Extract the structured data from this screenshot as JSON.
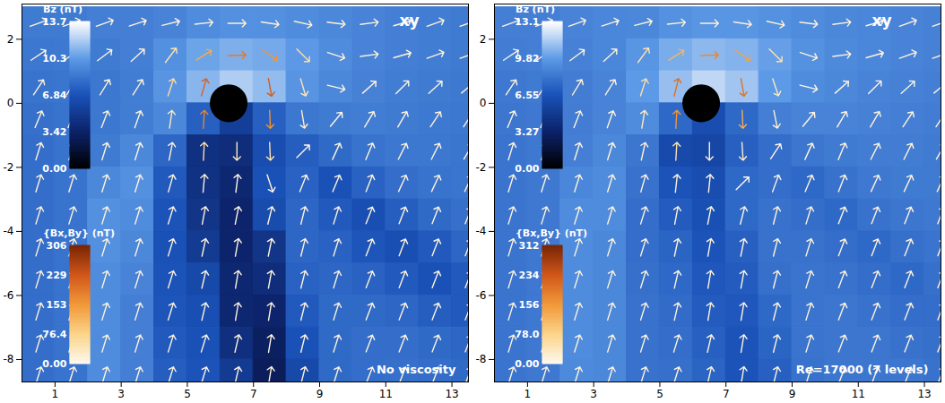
{
  "chart_data": [
    {
      "type": "vector_field",
      "title": "xy",
      "annotation": "No viscosity",
      "xlim": [
        0,
        13.5
      ],
      "ylim": [
        -8.7,
        3.1
      ],
      "xticks": [
        1,
        3,
        5,
        7,
        9,
        11,
        13
      ],
      "yticks": [
        -8,
        -6,
        -4,
        -2,
        0,
        2
      ],
      "body": {
        "x": 6.25,
        "y": 0,
        "r": 0.55
      },
      "grid_x": [
        0.5,
        1.5,
        2.5,
        3.5,
        4.5,
        5.5,
        6.5,
        7.5,
        8.5,
        9.5,
        10.5,
        11.5,
        12.5,
        13.5
      ],
      "grid_y": [
        2.5,
        1.5,
        0.5,
        -0.5,
        -1.5,
        -2.5,
        -3.5,
        -4.5,
        -5.5,
        -6.5,
        -7.5,
        -8.5
      ],
      "bz": [
        [
          8.8,
          8.8,
          9,
          9,
          9.2,
          9.6,
          9.8,
          9.8,
          9.6,
          9.4,
          9.2,
          9,
          8.9,
          8.8
        ],
        [
          8.6,
          8.7,
          8.8,
          9,
          9.8,
          10.6,
          11,
          10.8,
          10.2,
          9.6,
          9.2,
          9,
          8.9,
          8.8
        ],
        [
          8.4,
          8.5,
          8.6,
          8.9,
          10,
          11.2,
          12,
          11.4,
          10,
          9.4,
          9.1,
          8.9,
          8.8,
          8.7
        ],
        [
          8.3,
          8.4,
          8.6,
          8.9,
          9.4,
          7.5,
          5.5,
          7.5,
          8.6,
          8.8,
          8.9,
          8.8,
          8.7,
          8.6
        ],
        [
          8.2,
          8.4,
          8.8,
          9.4,
          7.8,
          4.5,
          4.2,
          6.5,
          7.4,
          8,
          8.4,
          8.6,
          8.6,
          8.5
        ],
        [
          8.2,
          8.4,
          9.4,
          9.8,
          7.2,
          4.6,
          3.8,
          6.8,
          7.6,
          6.8,
          7.6,
          8.2,
          8.4,
          8.5
        ],
        [
          8.2,
          8.4,
          9.8,
          9.6,
          6.9,
          4.8,
          3.6,
          6.4,
          7.8,
          7.2,
          6.6,
          7.4,
          8,
          8.3
        ],
        [
          8.2,
          8.4,
          9.8,
          9.4,
          6.8,
          5.2,
          3.6,
          4.8,
          7.8,
          7.6,
          7,
          6.6,
          7.2,
          7.8
        ],
        [
          8.2,
          8.4,
          9.6,
          9.2,
          6.9,
          6.2,
          3.8,
          4.2,
          7.6,
          7.8,
          7.6,
          7.2,
          6.8,
          7.2
        ],
        [
          8.2,
          8.4,
          9.6,
          9,
          7,
          6.6,
          3.8,
          3.6,
          7.2,
          8,
          8,
          7.8,
          7.4,
          7.2
        ],
        [
          8.2,
          8.4,
          9.6,
          9,
          7.2,
          6.8,
          4.4,
          3.2,
          6.8,
          8,
          8.2,
          8.2,
          8,
          7.8
        ],
        [
          8.2,
          8.4,
          9.6,
          9,
          7.4,
          6.9,
          5.2,
          3,
          6.2,
          8,
          8.2,
          8.3,
          8.2,
          8
        ]
      ],
      "bx": [
        [
          14,
          14,
          14,
          15,
          16,
          18,
          20,
          20,
          18,
          16,
          15,
          14,
          14,
          14
        ],
        [
          12,
          12,
          12,
          13,
          30,
          110,
          190,
          130,
          40,
          18,
          15,
          14,
          14,
          14
        ],
        [
          8,
          8,
          8,
          10,
          20,
          60,
          null,
          40,
          12,
          8,
          9,
          10,
          11,
          12
        ],
        [
          5,
          5,
          5,
          5,
          6,
          12,
          null,
          6,
          4,
          5,
          6,
          7,
          8,
          8
        ],
        [
          4,
          4,
          4,
          4,
          4,
          3,
          0,
          2,
          4,
          5,
          5,
          6,
          6,
          7
        ],
        [
          4,
          4,
          4,
          4,
          4,
          2,
          1,
          2,
          4,
          5,
          5,
          6,
          6,
          6
        ],
        [
          4,
          4,
          4,
          4,
          4,
          3,
          2,
          2,
          3,
          4,
          5,
          5,
          5,
          5
        ],
        [
          4,
          4,
          4,
          4,
          4,
          3,
          2,
          2,
          3,
          4,
          5,
          5,
          5,
          5
        ],
        [
          4,
          4,
          4,
          4,
          4,
          3,
          2,
          2,
          3,
          4,
          5,
          5,
          5,
          5
        ],
        [
          4,
          4,
          4,
          4,
          4,
          3,
          2,
          2,
          3,
          4,
          5,
          5,
          5,
          5
        ],
        [
          4,
          4,
          4,
          4,
          4,
          4,
          3,
          2,
          3,
          4,
          5,
          5,
          5,
          5
        ],
        [
          4,
          4,
          4,
          4,
          4,
          4,
          3,
          2,
          3,
          4,
          5,
          5,
          5,
          5
        ]
      ],
      "by": [
        [
          5,
          5,
          5,
          5,
          4,
          2,
          0,
          -3,
          -4,
          -2,
          2,
          4,
          5,
          5
        ],
        [
          8,
          8,
          9,
          12,
          40,
          70,
          10,
          -90,
          -40,
          -6,
          2,
          4,
          5,
          5
        ],
        [
          12,
          12,
          13,
          16,
          60,
          210,
          null,
          -220,
          -40,
          -2,
          8,
          10,
          10,
          10
        ],
        [
          12,
          12,
          13,
          14,
          40,
          180,
          null,
          -160,
          -24,
          6,
          10,
          12,
          12,
          12
        ],
        [
          13,
          13,
          13,
          13,
          20,
          60,
          -40,
          -45,
          4,
          11,
          12,
          12,
          12,
          12
        ],
        [
          13,
          13,
          13,
          13,
          14,
          22,
          8,
          -6,
          10,
          12,
          13,
          13,
          13,
          13
        ],
        [
          13,
          13,
          13,
          13,
          13,
          16,
          10,
          8,
          12,
          13,
          13,
          13,
          13,
          13
        ],
        [
          13,
          13,
          13,
          13,
          13,
          14,
          11,
          10,
          12,
          13,
          13,
          13,
          13,
          13
        ],
        [
          13,
          13,
          13,
          13,
          13,
          13,
          12,
          11,
          12,
          13,
          13,
          13,
          13,
          13
        ],
        [
          13,
          13,
          13,
          13,
          13,
          13,
          12,
          12,
          12,
          13,
          13,
          13,
          13,
          13
        ],
        [
          13,
          13,
          13,
          13,
          13,
          13,
          13,
          12,
          12,
          13,
          13,
          13,
          13,
          13
        ],
        [
          13,
          13,
          13,
          13,
          13,
          13,
          13,
          12,
          12,
          13,
          13,
          13,
          13,
          13
        ]
      ],
      "bz_colorbar": {
        "label": "Bz (nT)",
        "range": [
          0,
          13.7
        ],
        "ticks": [
          {
            "value": 0,
            "label": "0.00"
          },
          3.42,
          6.84,
          10.3,
          13.7
        ]
      },
      "bxby_colorbar": {
        "label": "{Bx,By} (nT)",
        "range": [
          0,
          306
        ],
        "ticks": [
          {
            "value": 0,
            "label": "0.00"
          },
          76.4,
          153,
          229,
          306
        ]
      }
    },
    {
      "type": "vector_field",
      "title": "xy",
      "annotation": "Re=17000 (7 levels)",
      "xlim": [
        0,
        13.5
      ],
      "ylim": [
        -8.7,
        3.1
      ],
      "xticks": [
        1,
        3,
        5,
        7,
        9,
        11,
        13
      ],
      "yticks": [
        -8,
        -6,
        -4,
        -2,
        0,
        2
      ],
      "body": {
        "x": 6.25,
        "y": 0,
        "r": 0.55
      },
      "grid_x": [
        0.5,
        1.5,
        2.5,
        3.5,
        4.5,
        5.5,
        6.5,
        7.5,
        8.5,
        9.5,
        10.5,
        11.5,
        12.5,
        13.5
      ],
      "grid_y": [
        2.5,
        1.5,
        0.5,
        -0.5,
        -1.5,
        -2.5,
        -3.5,
        -4.5,
        -5.5,
        -6.5,
        -7.5,
        -8.5
      ],
      "bz": [
        [
          8.6,
          8.6,
          8.8,
          8.9,
          9,
          9.4,
          9.6,
          9.6,
          9.4,
          9.2,
          9,
          8.9,
          8.8,
          8.7
        ],
        [
          8.5,
          8.6,
          8.7,
          8.9,
          9.6,
          10.4,
          10.8,
          10.6,
          10,
          9.4,
          9.1,
          8.9,
          8.8,
          8.7
        ],
        [
          8.3,
          8.4,
          8.5,
          8.8,
          9.8,
          11,
          11.8,
          11.2,
          9.8,
          9.2,
          9,
          8.8,
          8.7,
          8.6
        ],
        [
          8.2,
          8.3,
          8.5,
          8.8,
          9.2,
          7.6,
          6.2,
          7.6,
          8.6,
          8.8,
          8.8,
          8.7,
          8.6,
          8.5
        ],
        [
          8.1,
          8.3,
          8.6,
          9,
          8.2,
          6,
          5.8,
          7.2,
          7.8,
          8.2,
          8.4,
          8.5,
          8.5,
          8.4
        ],
        [
          8.1,
          8.3,
          8.9,
          9.2,
          8,
          6.6,
          6.2,
          7.6,
          7.8,
          7.6,
          8,
          8.3,
          8.4,
          8.4
        ],
        [
          8.1,
          8.3,
          9.2,
          9.2,
          7.8,
          7,
          6.4,
          7.6,
          8,
          7.8,
          7.6,
          8,
          8.2,
          8.3
        ],
        [
          8.1,
          8.3,
          9.2,
          9,
          7.8,
          7.4,
          6.6,
          7.2,
          8,
          8,
          7.8,
          7.6,
          7.9,
          8.1
        ],
        [
          8.1,
          8.3,
          9.2,
          9,
          7.9,
          7.6,
          6.8,
          7,
          7.9,
          8.1,
          8,
          7.8,
          7.6,
          7.9
        ],
        [
          8.1,
          8.3,
          9.2,
          9,
          8,
          7.7,
          7,
          6.8,
          7.6,
          8.1,
          8.2,
          8,
          7.8,
          7.8
        ],
        [
          8.1,
          8.3,
          9.2,
          9,
          8,
          7.8,
          7.2,
          6.6,
          7.4,
          8.1,
          8.2,
          8.2,
          8,
          7.9
        ],
        [
          8.1,
          8.3,
          9.1,
          9,
          8,
          7.9,
          7.4,
          6.6,
          7.2,
          8,
          8.2,
          8.2,
          8.2,
          8
        ]
      ],
      "bx": [
        [
          14,
          14,
          14,
          15,
          16,
          18,
          20,
          20,
          18,
          16,
          15,
          14,
          14,
          14
        ],
        [
          12,
          12,
          12,
          13,
          28,
          100,
          180,
          120,
          36,
          18,
          15,
          14,
          14,
          14
        ],
        [
          8,
          8,
          8,
          10,
          18,
          50,
          null,
          36,
          12,
          8,
          9,
          10,
          11,
          12
        ],
        [
          5,
          5,
          5,
          5,
          6,
          10,
          null,
          6,
          4,
          5,
          6,
          7,
          8,
          8
        ],
        [
          4,
          4,
          4,
          4,
          4,
          3,
          0,
          2,
          4,
          5,
          5,
          6,
          6,
          7
        ],
        [
          4,
          4,
          4,
          4,
          4,
          2,
          1,
          2,
          4,
          5,
          5,
          6,
          6,
          6
        ],
        [
          4,
          4,
          4,
          4,
          4,
          3,
          2,
          2,
          3,
          4,
          5,
          5,
          5,
          5
        ],
        [
          4,
          4,
          4,
          4,
          4,
          3,
          2,
          2,
          3,
          4,
          5,
          5,
          5,
          5
        ],
        [
          4,
          4,
          4,
          4,
          4,
          3,
          2,
          2,
          3,
          4,
          5,
          5,
          5,
          5
        ],
        [
          4,
          4,
          4,
          4,
          4,
          3,
          2,
          2,
          3,
          4,
          5,
          5,
          5,
          5
        ],
        [
          4,
          4,
          4,
          4,
          4,
          4,
          3,
          2,
          3,
          4,
          5,
          5,
          5,
          5
        ],
        [
          4,
          4,
          4,
          4,
          4,
          4,
          3,
          2,
          3,
          4,
          5,
          5,
          5,
          5
        ]
      ],
      "by": [
        [
          5,
          5,
          5,
          5,
          4,
          2,
          0,
          -3,
          -4,
          -2,
          2,
          4,
          5,
          5
        ],
        [
          8,
          8,
          9,
          12,
          38,
          64,
          8,
          -80,
          -36,
          -6,
          2,
          4,
          5,
          5
        ],
        [
          12,
          12,
          13,
          16,
          55,
          200,
          null,
          -200,
          -36,
          -2,
          8,
          10,
          10,
          10
        ],
        [
          12,
          12,
          13,
          14,
          36,
          160,
          null,
          -130,
          -20,
          6,
          10,
          12,
          12,
          12
        ],
        [
          13,
          13,
          13,
          13,
          18,
          50,
          -20,
          -30,
          6,
          11,
          12,
          12,
          12,
          12
        ],
        [
          13,
          13,
          13,
          13,
          14,
          18,
          10,
          2,
          11,
          12,
          13,
          13,
          13,
          13
        ],
        [
          13,
          13,
          13,
          13,
          13,
          16,
          10,
          8,
          12,
          13,
          13,
          13,
          13,
          13
        ],
        [
          13,
          13,
          13,
          13,
          13,
          14,
          11,
          10,
          12,
          13,
          13,
          13,
          13,
          13
        ],
        [
          13,
          13,
          13,
          13,
          13,
          13,
          12,
          11,
          12,
          13,
          13,
          13,
          13,
          13
        ],
        [
          13,
          13,
          13,
          13,
          13,
          13,
          12,
          12,
          12,
          13,
          13,
          13,
          13,
          13
        ],
        [
          13,
          13,
          13,
          13,
          13,
          13,
          13,
          12,
          12,
          13,
          13,
          13,
          13,
          13
        ],
        [
          13,
          13,
          13,
          13,
          13,
          13,
          13,
          12,
          12,
          13,
          13,
          13,
          13,
          13
        ]
      ],
      "bz_colorbar": {
        "label": "Bz (nT)",
        "range": [
          0,
          13.1
        ],
        "ticks": [
          {
            "value": 0,
            "label": "0.00"
          },
          3.27,
          6.55,
          9.82,
          13.1
        ]
      },
      "bxby_colorbar": {
        "label": "{Bx,By} (nT)",
        "range": [
          0,
          312
        ],
        "ticks": [
          {
            "value": 0,
            "label": "0.00"
          },
          {
            "value": 78,
            "label": "78.0"
          },
          156,
          234,
          312
        ]
      }
    }
  ]
}
